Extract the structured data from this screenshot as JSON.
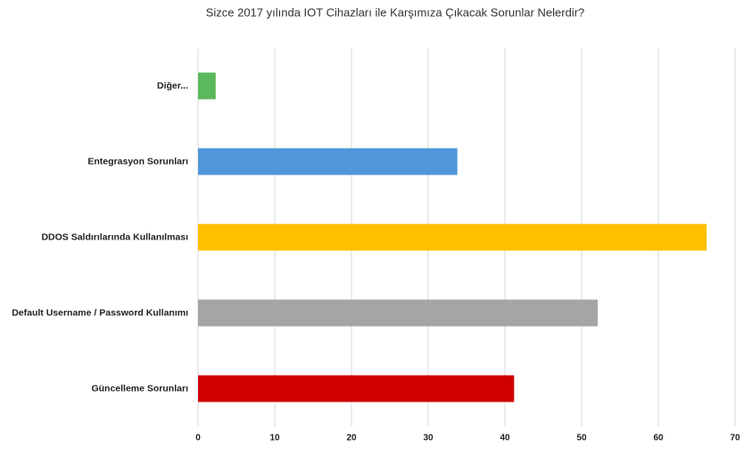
{
  "chart_data": {
    "type": "barh",
    "title": "Sizce 2017 yılında IOT Cihazları ile Karşımıza Çıkacak Sorunlar Nelerdir?",
    "categories": [
      "Diğer...",
      "Entegrasyon Sorunları",
      "DDOS Saldırılarında Kullanılması",
      "Default Username / Password Kullanımı",
      "Güncelleme Sorunları"
    ],
    "values": [
      2.3,
      33.8,
      66.3,
      52.1,
      41.2
    ],
    "colors": [
      "#5cb85c",
      "#4f97d9",
      "#ffc000",
      "#a5a5a5",
      "#d00000"
    ],
    "xlim": [
      0,
      70
    ],
    "xticks": [
      0,
      10,
      20,
      30,
      40,
      50,
      60,
      70
    ],
    "grid": true
  }
}
